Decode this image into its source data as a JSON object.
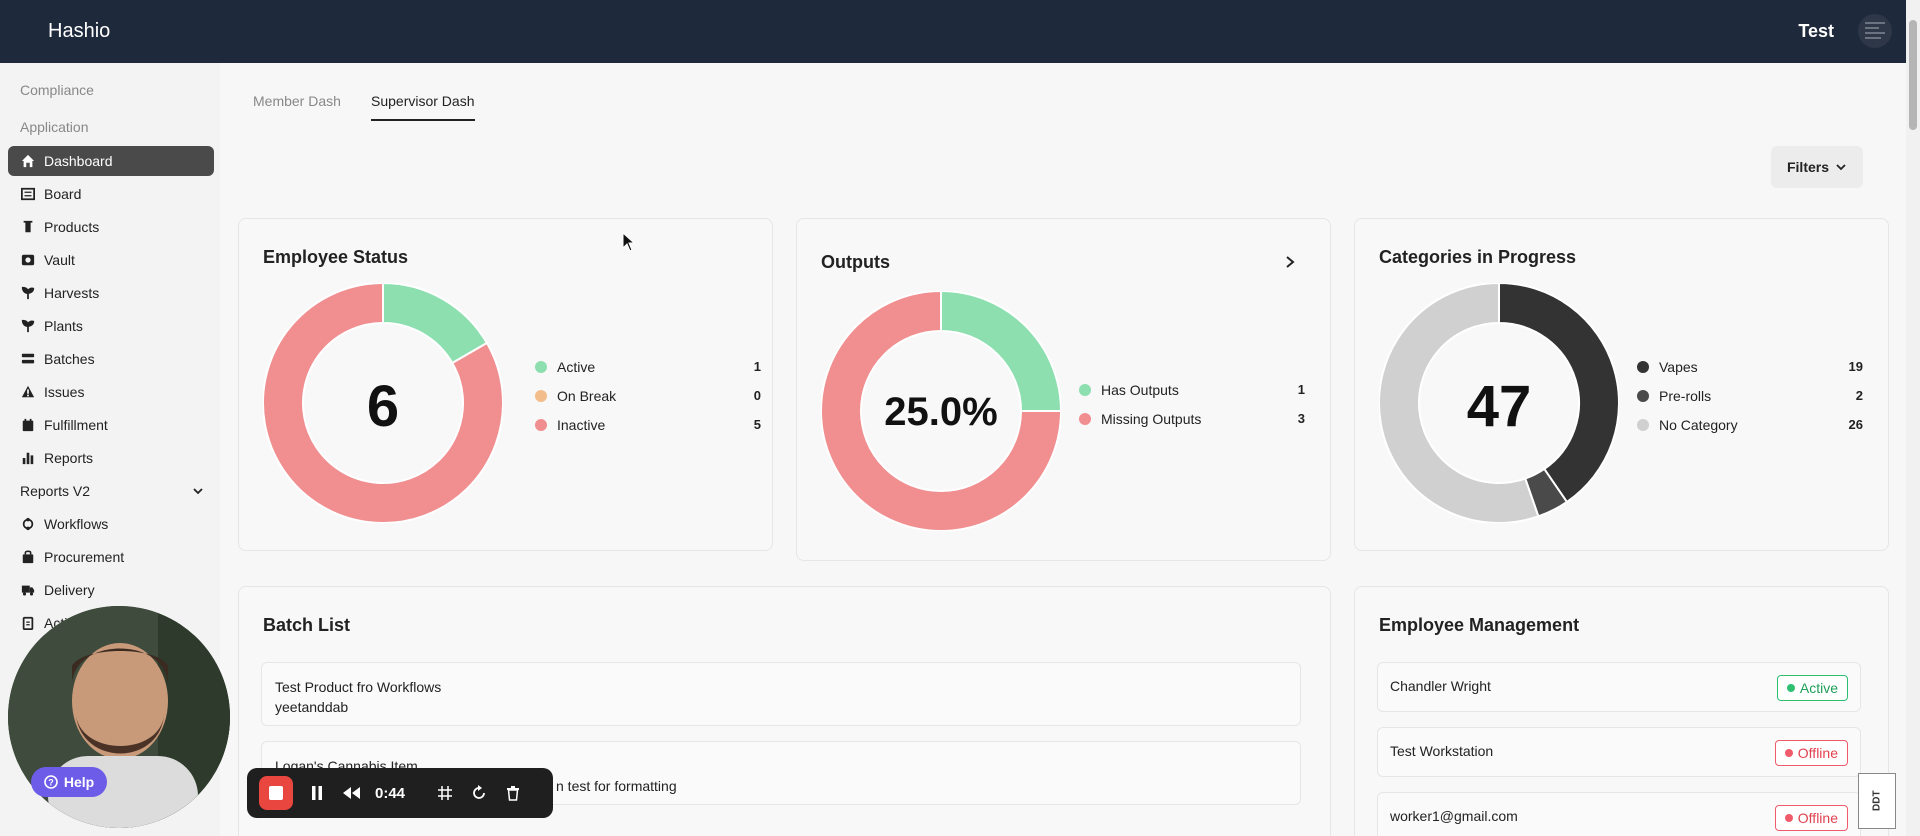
{
  "app": {
    "brand": "Hashio",
    "user_name": "Test"
  },
  "sidebar": {
    "sections": [
      "Compliance",
      "Application"
    ],
    "items": [
      {
        "label": "Dashboard",
        "icon": "home-icon",
        "active": true
      },
      {
        "label": "Board",
        "icon": "board-icon"
      },
      {
        "label": "Products",
        "icon": "flask-icon"
      },
      {
        "label": "Vault",
        "icon": "vault-icon"
      },
      {
        "label": "Harvests",
        "icon": "sprout-icon"
      },
      {
        "label": "Plants",
        "icon": "plant-icon"
      },
      {
        "label": "Batches",
        "icon": "layers-icon"
      },
      {
        "label": "Issues",
        "icon": "warning-icon"
      },
      {
        "label": "Fulfillment",
        "icon": "calendar-icon"
      },
      {
        "label": "Reports",
        "icon": "bar-chart-icon"
      },
      {
        "label": "Reports V2",
        "icon": "chevron-down-icon"
      },
      {
        "label": "Workflows",
        "icon": "workflow-icon"
      },
      {
        "label": "Procurement",
        "icon": "bag-icon"
      },
      {
        "label": "Delivery",
        "icon": "truck-icon"
      },
      {
        "label": "Acti",
        "icon": "clipboard-icon"
      }
    ]
  },
  "tabs": [
    {
      "label": "Member Dash",
      "active": false
    },
    {
      "label": "Supervisor Dash",
      "active": true
    }
  ],
  "filters_label": "Filters",
  "employee_status": {
    "title": "Employee Status",
    "center": "6",
    "legend": [
      {
        "label": "Active",
        "value": 1,
        "color": "#8ddfb0"
      },
      {
        "label": "On Break",
        "value": 0,
        "color": "#f2bd8a"
      },
      {
        "label": "Inactive",
        "value": 5,
        "color": "#f08e90"
      }
    ]
  },
  "outputs": {
    "title": "Outputs",
    "center": "25.0%",
    "legend": [
      {
        "label": "Has Outputs",
        "value": 1,
        "color": "#8ddfb0"
      },
      {
        "label": "Missing Outputs",
        "value": 3,
        "color": "#f08e90"
      }
    ]
  },
  "categories": {
    "title": "Categories in Progress",
    "center": "47",
    "legend": [
      {
        "label": "Vapes",
        "value": 19,
        "color": "#333333"
      },
      {
        "label": "Pre-rolls",
        "value": 2,
        "color": "#4a4a4a"
      },
      {
        "label": "No Category",
        "value": 26,
        "color": "#d0d0d0"
      }
    ]
  },
  "batch_list": {
    "title": "Batch List",
    "rows": [
      {
        "line1": "Test Product fro Workflows",
        "line2": "yeetanddab"
      },
      {
        "line1": "Logan's Cannabis Item",
        "line2": "n test for formatting"
      }
    ]
  },
  "employee_management": {
    "title": "Employee Management",
    "rows": [
      {
        "name": "Chandler Wright",
        "status": "Active"
      },
      {
        "name": "Test Workstation",
        "status": "Offline"
      },
      {
        "name": "worker1@gmail.com",
        "status": "Offline"
      }
    ]
  },
  "overlay": {
    "help_label": "Help",
    "timer": "0:44",
    "corner_badge": "DDT"
  }
}
